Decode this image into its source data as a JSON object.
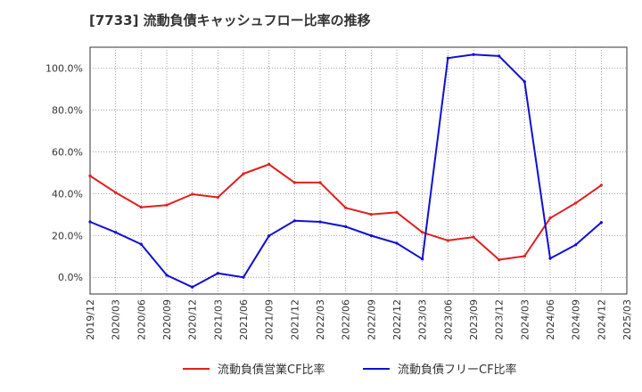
{
  "chart_data": {
    "type": "line",
    "title": "[7733]  流動負債キャッシュフロー比率の推移",
    "xlabel": "",
    "ylabel": "",
    "ylim": [
      -8,
      110
    ],
    "yticks": [
      0,
      20,
      40,
      60,
      80,
      100
    ],
    "ytick_labels": [
      "0.0%",
      "20.0%",
      "40.0%",
      "60.0%",
      "80.0%",
      "100.0%"
    ],
    "x_categories": [
      "2019/12",
      "2020/03",
      "2020/06",
      "2020/09",
      "2020/12",
      "2021/03",
      "2021/06",
      "2021/09",
      "2021/12",
      "2022/03",
      "2022/06",
      "2022/09",
      "2022/12",
      "2023/03",
      "2023/06",
      "2023/09",
      "2023/12",
      "2024/03",
      "2024/06",
      "2024/09",
      "2024/12",
      "2025/03"
    ],
    "grid": true,
    "legend_position": "bottom",
    "series": [
      {
        "name": "流動負債営業CF比率",
        "color": "#e02020",
        "values": [
          48.5,
          40.5,
          33.5,
          34.5,
          39.7,
          38.2,
          49.5,
          54.0,
          45.3,
          45.3,
          33.2,
          30.1,
          31.0,
          21.5,
          17.6,
          19.2,
          8.4,
          10.1,
          28.3,
          35.5,
          44.0,
          null
        ]
      },
      {
        "name": "流動負債フリーCF比率",
        "color": "#1010d0",
        "values": [
          26.5,
          21.5,
          15.8,
          1.0,
          -4.7,
          1.9,
          0.0,
          19.8,
          27.0,
          26.5,
          24.2,
          19.9,
          16.3,
          8.7,
          104.8,
          106.5,
          105.8,
          93.5,
          9.0,
          15.5,
          26.2,
          null
        ]
      }
    ]
  }
}
